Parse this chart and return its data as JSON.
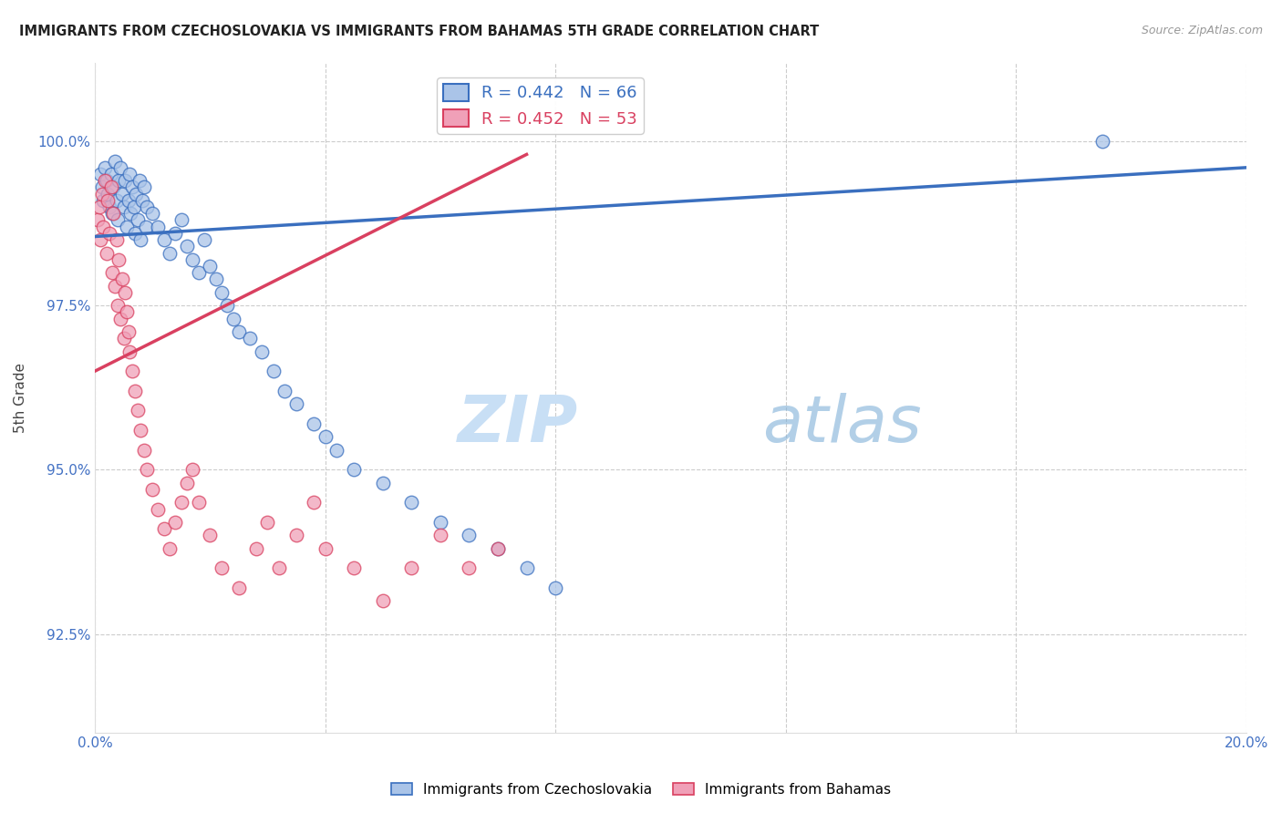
{
  "title": "IMMIGRANTS FROM CZECHOSLOVAKIA VS IMMIGRANTS FROM BAHAMAS 5TH GRADE CORRELATION CHART",
  "source": "Source: ZipAtlas.com",
  "ylabel": "5th Grade",
  "ytick_values": [
    92.5,
    95.0,
    97.5,
    100.0
  ],
  "xlim": [
    0.0,
    20.0
  ],
  "ylim": [
    91.0,
    101.2
  ],
  "legend_blue_r": "R = 0.442",
  "legend_blue_n": "N = 66",
  "legend_pink_r": "R = 0.452",
  "legend_pink_n": "N = 53",
  "legend_blue_label": "Immigrants from Czechoslovakia",
  "legend_pink_label": "Immigrants from Bahamas",
  "dot_color_blue": "#aac4e8",
  "dot_color_pink": "#f0a0b8",
  "line_color_blue": "#3a6fbf",
  "line_color_pink": "#d94060",
  "watermark_zip": "ZIP",
  "watermark_atlas": "atlas",
  "background_color": "#ffffff",
  "grid_color": "#cccccc",
  "title_color": "#222222",
  "axis_label_color": "#4472c4",
  "blue_points_x": [
    0.1,
    0.12,
    0.15,
    0.18,
    0.2,
    0.22,
    0.25,
    0.28,
    0.3,
    0.32,
    0.35,
    0.38,
    0.4,
    0.42,
    0.45,
    0.48,
    0.5,
    0.52,
    0.55,
    0.58,
    0.6,
    0.62,
    0.65,
    0.68,
    0.7,
    0.72,
    0.75,
    0.78,
    0.8,
    0.82,
    0.85,
    0.88,
    0.9,
    1.0,
    1.1,
    1.2,
    1.3,
    1.4,
    1.5,
    1.6,
    1.7,
    1.8,
    1.9,
    2.0,
    2.1,
    2.2,
    2.3,
    2.4,
    2.5,
    2.7,
    2.9,
    3.1,
    3.3,
    3.5,
    3.8,
    4.0,
    4.2,
    4.5,
    5.0,
    5.5,
    6.0,
    6.5,
    7.0,
    7.5,
    8.0,
    17.5
  ],
  "blue_points_y": [
    99.5,
    99.3,
    99.1,
    99.6,
    99.4,
    99.2,
    99.0,
    99.5,
    98.9,
    99.3,
    99.7,
    99.1,
    98.8,
    99.4,
    99.6,
    99.2,
    99.0,
    99.4,
    98.7,
    99.1,
    99.5,
    98.9,
    99.3,
    99.0,
    98.6,
    99.2,
    98.8,
    99.4,
    98.5,
    99.1,
    99.3,
    98.7,
    99.0,
    98.9,
    98.7,
    98.5,
    98.3,
    98.6,
    98.8,
    98.4,
    98.2,
    98.0,
    98.5,
    98.1,
    97.9,
    97.7,
    97.5,
    97.3,
    97.1,
    97.0,
    96.8,
    96.5,
    96.2,
    96.0,
    95.7,
    95.5,
    95.3,
    95.0,
    94.8,
    94.5,
    94.2,
    94.0,
    93.8,
    93.5,
    93.2,
    100.0
  ],
  "pink_points_x": [
    0.05,
    0.08,
    0.1,
    0.12,
    0.15,
    0.18,
    0.2,
    0.22,
    0.25,
    0.28,
    0.3,
    0.32,
    0.35,
    0.38,
    0.4,
    0.42,
    0.45,
    0.48,
    0.5,
    0.52,
    0.55,
    0.58,
    0.6,
    0.65,
    0.7,
    0.75,
    0.8,
    0.85,
    0.9,
    1.0,
    1.1,
    1.2,
    1.3,
    1.4,
    1.5,
    1.6,
    1.7,
    1.8,
    2.0,
    2.2,
    2.5,
    2.8,
    3.0,
    3.2,
    3.5,
    3.8,
    4.0,
    4.5,
    5.0,
    5.5,
    6.0,
    6.5,
    7.0
  ],
  "pink_points_y": [
    98.8,
    99.0,
    98.5,
    99.2,
    98.7,
    99.4,
    98.3,
    99.1,
    98.6,
    99.3,
    98.0,
    98.9,
    97.8,
    98.5,
    97.5,
    98.2,
    97.3,
    97.9,
    97.0,
    97.7,
    97.4,
    97.1,
    96.8,
    96.5,
    96.2,
    95.9,
    95.6,
    95.3,
    95.0,
    94.7,
    94.4,
    94.1,
    93.8,
    94.2,
    94.5,
    94.8,
    95.0,
    94.5,
    94.0,
    93.5,
    93.2,
    93.8,
    94.2,
    93.5,
    94.0,
    94.5,
    93.8,
    93.5,
    93.0,
    93.5,
    94.0,
    93.5,
    93.8
  ],
  "blue_trend_x": [
    0.0,
    20.0
  ],
  "blue_trend_y": [
    98.55,
    99.6
  ],
  "pink_trend_x": [
    0.0,
    7.5
  ],
  "pink_trend_y": [
    96.5,
    99.8
  ]
}
